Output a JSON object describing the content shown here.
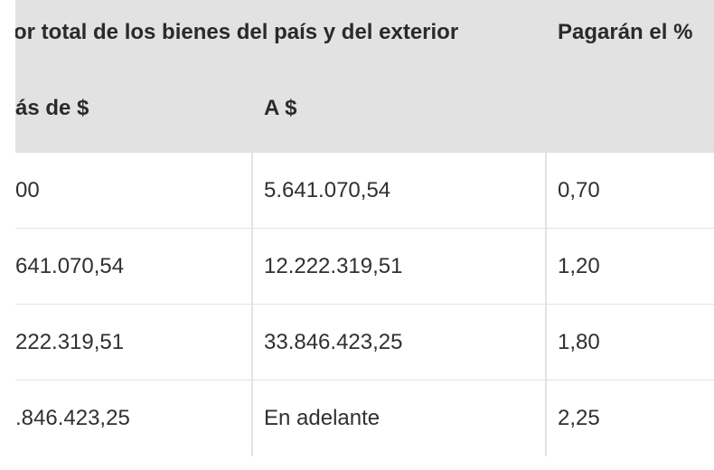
{
  "table": {
    "header": {
      "main": "alor total de los bienes del país y del exterior",
      "pct": "Pagarán el %",
      "from": "ás de $",
      "to": "A $"
    },
    "rows": [
      {
        "from": "00",
        "to": "5.641.070,54",
        "pct": "0,70"
      },
      {
        "from": "641.070,54",
        "to": "12.222.319,51",
        "pct": "1,20"
      },
      {
        "from": "222.319,51",
        "to": "33.846.423,25",
        "pct": "1,80"
      },
      {
        "from": ".846.423,25",
        "to": "En adelante",
        "pct": "2,25"
      }
    ]
  }
}
